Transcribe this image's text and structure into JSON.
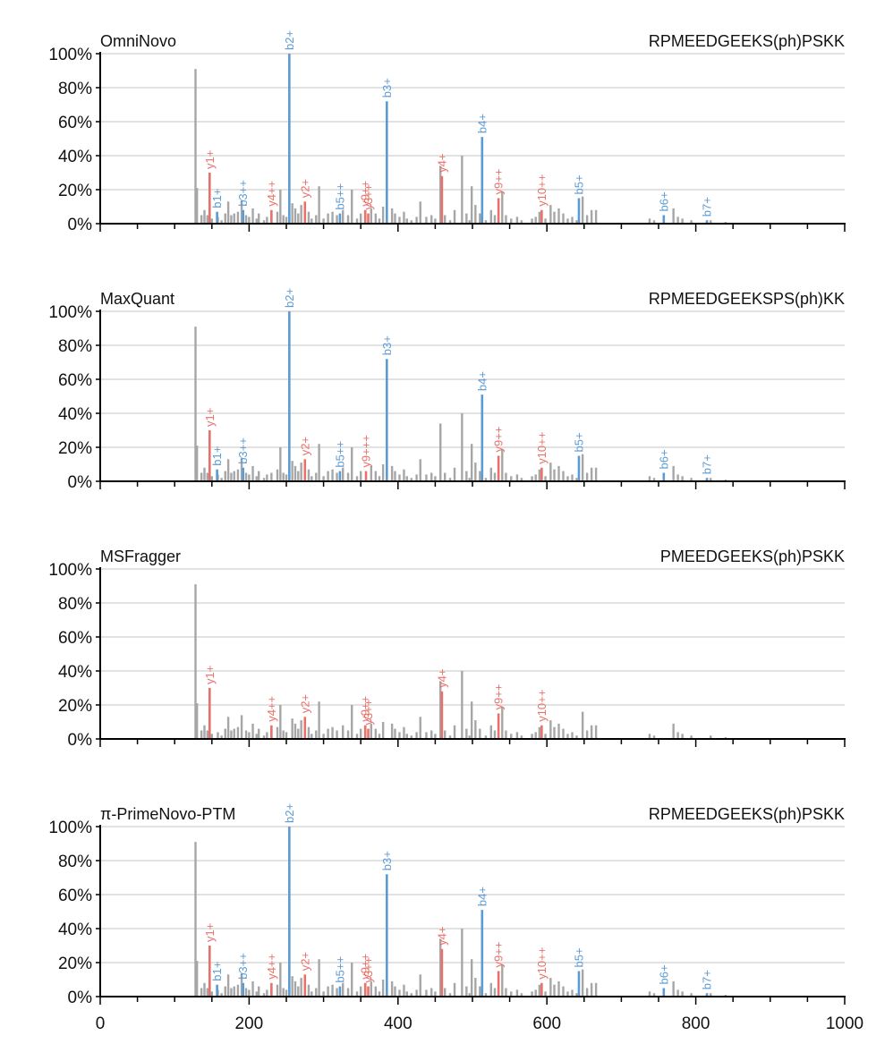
{
  "chart_data": [
    {
      "type": "bar",
      "title": "OmniNovo",
      "peptide": "RPMEEDGEEKS(ph)PSKK",
      "xlim": [
        0,
        1000
      ],
      "ylim": [
        0,
        100
      ],
      "yticks": [
        "0%",
        "20%",
        "40%",
        "60%",
        "80%",
        "100%"
      ],
      "xticks": [],
      "grid": true,
      "annotated": [
        {
          "label": "b1+",
          "x": 157,
          "y": 7,
          "type": "b"
        },
        {
          "label": "b2+",
          "x": 254,
          "y": 100,
          "type": "b"
        },
        {
          "label": "b3++",
          "x": 192,
          "y": 8,
          "type": "b"
        },
        {
          "label": "b3+",
          "x": 385,
          "y": 72,
          "type": "b"
        },
        {
          "label": "b4+",
          "x": 513,
          "y": 51,
          "type": "b"
        },
        {
          "label": "b5++",
          "x": 322,
          "y": 6,
          "type": "b"
        },
        {
          "label": "b5+",
          "x": 643,
          "y": 15,
          "type": "b"
        },
        {
          "label": "b6+",
          "x": 757,
          "y": 5,
          "type": "b"
        },
        {
          "label": "b7+",
          "x": 815,
          "y": 2,
          "type": "b"
        },
        {
          "label": "y1+",
          "x": 147,
          "y": 30,
          "type": "y"
        },
        {
          "label": "y2+",
          "x": 275,
          "y": 13,
          "type": "y"
        },
        {
          "label": "y3++",
          "x": 360,
          "y": 6,
          "type": "y"
        },
        {
          "label": "y4++",
          "x": 230,
          "y": 8,
          "type": "y"
        },
        {
          "label": "y4+",
          "x": 459,
          "y": 28,
          "type": "y"
        },
        {
          "label": "y9++",
          "x": 356,
          "y": 8,
          "type": "y"
        },
        {
          "label": "y9++",
          "x": 535,
          "y": 15,
          "type": "y"
        },
        {
          "label": "y10++",
          "x": 593,
          "y": 8,
          "type": "y"
        }
      ]
    },
    {
      "type": "bar",
      "title": "MaxQuant",
      "peptide": "RPMEEDGEEKSPS(ph)KK",
      "xlim": [
        0,
        1000
      ],
      "ylim": [
        0,
        100
      ],
      "yticks": [
        "0%",
        "20%",
        "40%",
        "60%",
        "80%",
        "100%"
      ],
      "xticks": [],
      "grid": true,
      "annotated": [
        {
          "label": "b1+",
          "x": 157,
          "y": 7,
          "type": "b"
        },
        {
          "label": "b2+",
          "x": 254,
          "y": 100,
          "type": "b"
        },
        {
          "label": "b3++",
          "x": 192,
          "y": 8,
          "type": "b"
        },
        {
          "label": "b3+",
          "x": 385,
          "y": 72,
          "type": "b"
        },
        {
          "label": "b4+",
          "x": 513,
          "y": 51,
          "type": "b"
        },
        {
          "label": "b5++",
          "x": 322,
          "y": 6,
          "type": "b"
        },
        {
          "label": "b5+",
          "x": 643,
          "y": 15,
          "type": "b"
        },
        {
          "label": "b6+",
          "x": 757,
          "y": 5,
          "type": "b"
        },
        {
          "label": "b7+",
          "x": 815,
          "y": 2,
          "type": "b"
        },
        {
          "label": "y1+",
          "x": 147,
          "y": 30,
          "type": "y"
        },
        {
          "label": "y2+",
          "x": 275,
          "y": 13,
          "type": "y"
        },
        {
          "label": "y9+++",
          "x": 357,
          "y": 6,
          "type": "y"
        },
        {
          "label": "y9++",
          "x": 535,
          "y": 15,
          "type": "y"
        },
        {
          "label": "y10++",
          "x": 593,
          "y": 8,
          "type": "y"
        }
      ]
    },
    {
      "type": "bar",
      "title": "MSFragger",
      "peptide": "PMEEDGEEKS(ph)PSKK",
      "xlim": [
        0,
        1000
      ],
      "ylim": [
        0,
        100
      ],
      "yticks": [
        "0%",
        "20%",
        "40%",
        "60%",
        "80%",
        "100%"
      ],
      "xticks": [],
      "grid": true,
      "annotated": [
        {
          "label": "y1+",
          "x": 147,
          "y": 30,
          "type": "y"
        },
        {
          "label": "y2+",
          "x": 275,
          "y": 13,
          "type": "y"
        },
        {
          "label": "y3++",
          "x": 360,
          "y": 6,
          "type": "y"
        },
        {
          "label": "y4++",
          "x": 230,
          "y": 8,
          "type": "y"
        },
        {
          "label": "y4+",
          "x": 459,
          "y": 28,
          "type": "y"
        },
        {
          "label": "y9++",
          "x": 356,
          "y": 8,
          "type": "y"
        },
        {
          "label": "y9++",
          "x": 535,
          "y": 15,
          "type": "y"
        },
        {
          "label": "y10++",
          "x": 593,
          "y": 8,
          "type": "y"
        }
      ]
    },
    {
      "type": "bar",
      "title": "π-PrimeNovo-PTM",
      "peptide": "RPMEEDGEEKS(ph)PSKK",
      "xlim": [
        0,
        1000
      ],
      "ylim": [
        0,
        100
      ],
      "yticks": [
        "0%",
        "20%",
        "40%",
        "60%",
        "80%",
        "100%"
      ],
      "xticks": [
        "0",
        "200",
        "400",
        "600",
        "800",
        "1000"
      ],
      "grid": true,
      "annotated": [
        {
          "label": "b1+",
          "x": 157,
          "y": 7,
          "type": "b"
        },
        {
          "label": "b2+",
          "x": 254,
          "y": 100,
          "type": "b"
        },
        {
          "label": "b3++",
          "x": 192,
          "y": 8,
          "type": "b"
        },
        {
          "label": "b3+",
          "x": 385,
          "y": 72,
          "type": "b"
        },
        {
          "label": "b4+",
          "x": 513,
          "y": 51,
          "type": "b"
        },
        {
          "label": "b5++",
          "x": 322,
          "y": 6,
          "type": "b"
        },
        {
          "label": "b5+",
          "x": 643,
          "y": 15,
          "type": "b"
        },
        {
          "label": "b6+",
          "x": 757,
          "y": 5,
          "type": "b"
        },
        {
          "label": "b7+",
          "x": 815,
          "y": 2,
          "type": "b"
        },
        {
          "label": "y1+",
          "x": 147,
          "y": 30,
          "type": "y"
        },
        {
          "label": "y2+",
          "x": 275,
          "y": 13,
          "type": "y"
        },
        {
          "label": "y3++",
          "x": 360,
          "y": 6,
          "type": "y"
        },
        {
          "label": "y4++",
          "x": 230,
          "y": 8,
          "type": "y"
        },
        {
          "label": "y4+",
          "x": 459,
          "y": 28,
          "type": "y"
        },
        {
          "label": "y9++",
          "x": 356,
          "y": 8,
          "type": "y"
        },
        {
          "label": "y9++",
          "x": 535,
          "y": 15,
          "type": "y"
        },
        {
          "label": "y10++",
          "x": 593,
          "y": 8,
          "type": "y"
        }
      ]
    }
  ],
  "background_peaks": [
    [
      128,
      91
    ],
    [
      130,
      21
    ],
    [
      136,
      5
    ],
    [
      140,
      8
    ],
    [
      144,
      5
    ],
    [
      150,
      3
    ],
    [
      158,
      4
    ],
    [
      163,
      2
    ],
    [
      168,
      6
    ],
    [
      172,
      13
    ],
    [
      176,
      5
    ],
    [
      180,
      6
    ],
    [
      185,
      7
    ],
    [
      190,
      14
    ],
    [
      196,
      5
    ],
    [
      200,
      4
    ],
    [
      205,
      9
    ],
    [
      210,
      3
    ],
    [
      213,
      6
    ],
    [
      220,
      2
    ],
    [
      224,
      4
    ],
    [
      230,
      5
    ],
    [
      238,
      7
    ],
    [
      242,
      20
    ],
    [
      246,
      5
    ],
    [
      250,
      4
    ],
    [
      258,
      12
    ],
    [
      262,
      9
    ],
    [
      266,
      6
    ],
    [
      270,
      11
    ],
    [
      280,
      7
    ],
    [
      284,
      3
    ],
    [
      290,
      5
    ],
    [
      294,
      22
    ],
    [
      300,
      3
    ],
    [
      306,
      6
    ],
    [
      312,
      7
    ],
    [
      318,
      5
    ],
    [
      326,
      8
    ],
    [
      333,
      5
    ],
    [
      338,
      20
    ],
    [
      345,
      3
    ],
    [
      350,
      6
    ],
    [
      364,
      9
    ],
    [
      370,
      6
    ],
    [
      375,
      3
    ],
    [
      380,
      10
    ],
    [
      392,
      9
    ],
    [
      396,
      6
    ],
    [
      402,
      4
    ],
    [
      408,
      7
    ],
    [
      412,
      3
    ],
    [
      418,
      2
    ],
    [
      425,
      4
    ],
    [
      430,
      13
    ],
    [
      438,
      4
    ],
    [
      445,
      5
    ],
    [
      450,
      3
    ],
    [
      457,
      34
    ],
    [
      463,
      5
    ],
    [
      470,
      2
    ],
    [
      476,
      8
    ],
    [
      486,
      40
    ],
    [
      492,
      6
    ],
    [
      496,
      2
    ],
    [
      499,
      22
    ],
    [
      504,
      11
    ],
    [
      510,
      6
    ],
    [
      518,
      2
    ],
    [
      525,
      8
    ],
    [
      530,
      5
    ],
    [
      540,
      19
    ],
    [
      545,
      5
    ],
    [
      552,
      3
    ],
    [
      560,
      4
    ],
    [
      566,
      2
    ],
    [
      580,
      3
    ],
    [
      585,
      4
    ],
    [
      590,
      7
    ],
    [
      598,
      3
    ],
    [
      605,
      11
    ],
    [
      610,
      7
    ],
    [
      616,
      9
    ],
    [
      622,
      6
    ],
    [
      628,
      3
    ],
    [
      634,
      4
    ],
    [
      640,
      2
    ],
    [
      648,
      16
    ],
    [
      654,
      5
    ],
    [
      660,
      8
    ],
    [
      666,
      8
    ],
    [
      738,
      3
    ],
    [
      744,
      2
    ],
    [
      770,
      9
    ],
    [
      776,
      4
    ],
    [
      782,
      3
    ],
    [
      794,
      2
    ],
    [
      820,
      2
    ],
    [
      840,
      1
    ]
  ]
}
